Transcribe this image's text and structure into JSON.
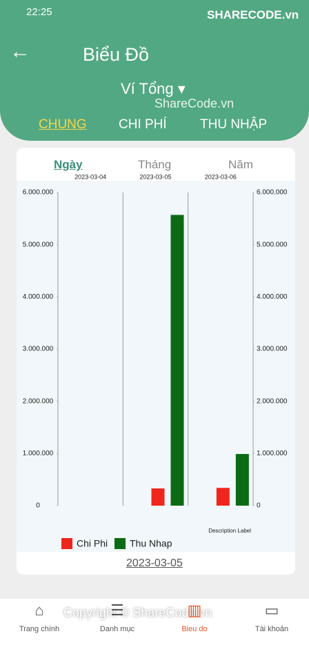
{
  "status": {
    "time": "22:25"
  },
  "watermarks": {
    "logo": "SHARECODE.vn",
    "center": "ShareCode.vn",
    "footer": "Copyright © ShareCode.vn"
  },
  "header": {
    "title": "Biểu Đồ",
    "wallet": "Ví Tổng",
    "tabs": [
      "CHUNG",
      "CHI PHÍ",
      "THU NHẬP"
    ]
  },
  "period_tabs": [
    "Ngày",
    "Tháng",
    "Năm"
  ],
  "chart_data": {
    "type": "bar",
    "categories": [
      "2023-03-04",
      "2023-03-05",
      "2023-03-06"
    ],
    "series": [
      {
        "name": "Chi Phi",
        "color": "#f0261c",
        "values": [
          0,
          330000,
          340000
        ]
      },
      {
        "name": "Thu Nhap",
        "color": "#0a6b14",
        "values": [
          0,
          5570000,
          990000
        ]
      }
    ],
    "ylim": [
      0,
      6000000
    ],
    "yticks": [
      0,
      {
        "value": 1000000,
        "label": "1.000.000"
      },
      {
        "value": 2000000,
        "label": "2.000.000"
      },
      {
        "value": 3000000,
        "label": "3.000.000"
      },
      {
        "value": 4000000,
        "label": "4.000.000"
      },
      {
        "value": 5000000,
        "label": "5.000.000"
      },
      {
        "value": 6000000,
        "label": "6.000.000"
      }
    ],
    "y2lim": [
      0,
      6000000
    ],
    "y2ticks": [
      0,
      {
        "value": 1000000,
        "label": "1.000.000"
      },
      {
        "value": 2000000,
        "label": "2.000.000"
      },
      {
        "value": 3000000,
        "label": "3.000.000"
      },
      {
        "value": 4000000,
        "label": "4.000.000"
      },
      {
        "value": 5000000,
        "label": "5.000.000"
      },
      {
        "value": 6000000,
        "label": "6.000.000"
      }
    ],
    "description": "Description Label",
    "grid": true
  },
  "selected_date": "2023-03-05",
  "nav": [
    "Trang chính",
    "Danh mục",
    "Bieu do",
    "Tài khoản"
  ]
}
